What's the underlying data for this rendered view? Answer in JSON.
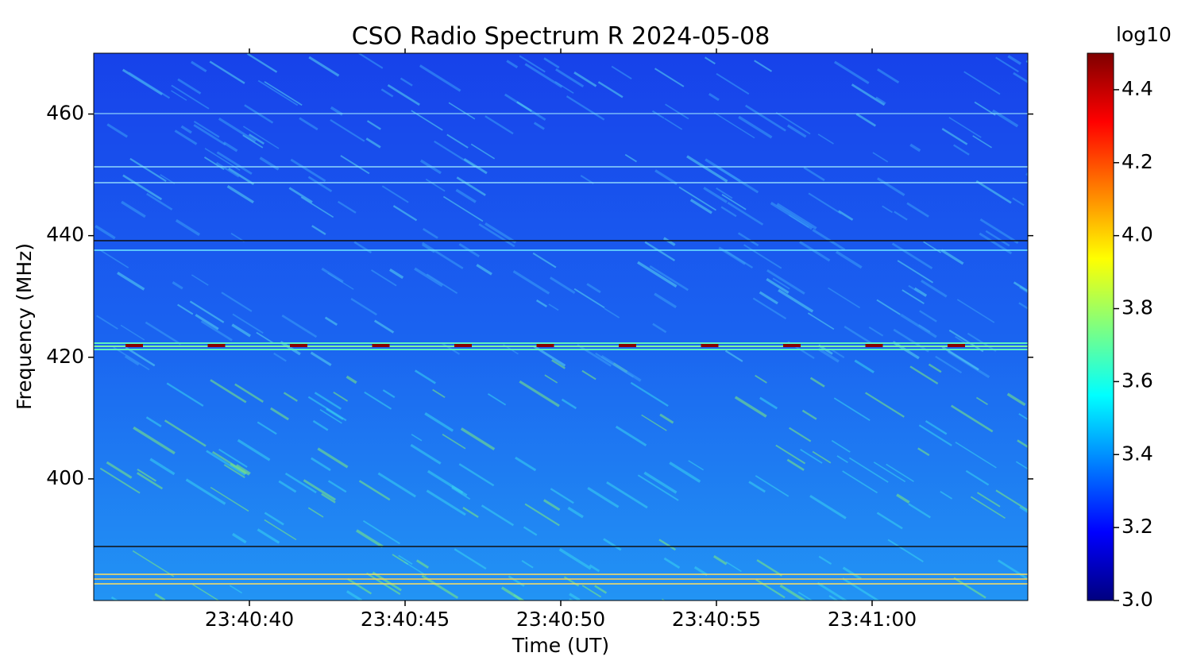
{
  "chart_data": {
    "type": "heatmap",
    "title": "CSO Radio Spectrum R 2024-05-08",
    "x_label": "Time (UT)",
    "y_label": "Frequency (MHz)",
    "xlim": [
      85235,
      85265
    ],
    "xticks": [
      {
        "value": 85240,
        "label": "23:40:40"
      },
      {
        "value": 85245,
        "label": "23:40:45"
      },
      {
        "value": 85250,
        "label": "23:40:50"
      },
      {
        "value": 85255,
        "label": "23:40:55"
      },
      {
        "value": 85260,
        "label": "23:41:00"
      }
    ],
    "ylim": [
      380,
      470
    ],
    "yticks": [
      400,
      420,
      440,
      460
    ],
    "colormap": "jet",
    "colorbar": {
      "label": "log10",
      "clim": [
        3.0,
        4.5
      ],
      "ticks": [
        {
          "value": 3.0,
          "label": "3.0"
        },
        3.2,
        3.4,
        3.6,
        3.8,
        {
          "value": 4.0,
          "label": "4.0"
        },
        4.2,
        4.4
      ]
    }
  }
}
